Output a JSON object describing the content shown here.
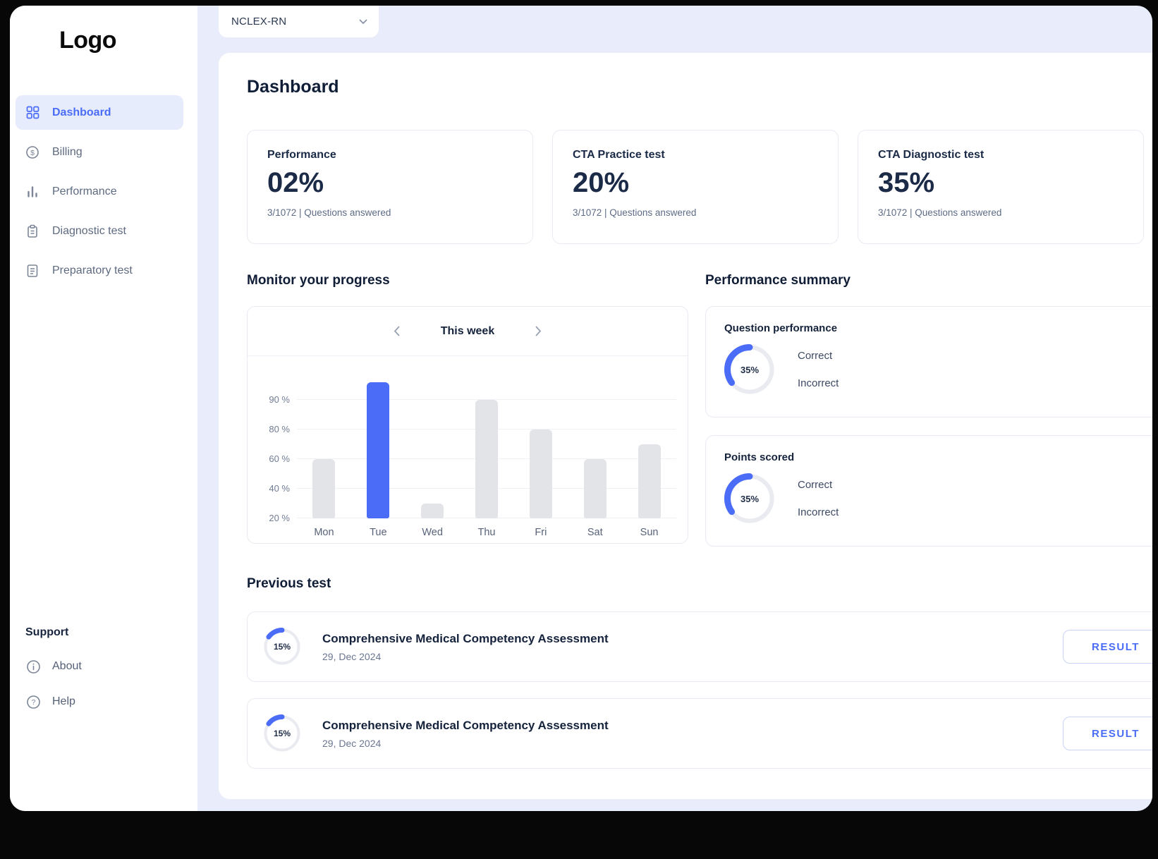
{
  "theme": {
    "accent": "#4A6CF7",
    "active_nav_bg": "#E7ECFC",
    "main_bg": "#E9EDFB",
    "bar_gray": "#E3E4E8",
    "dark_text": "#16233E"
  },
  "logo": "Logo",
  "sidebar": {
    "items": [
      {
        "label": "Dashboard",
        "icon": "dashboard-grid-icon",
        "active": true
      },
      {
        "label": "Billing",
        "icon": "billing-dollar-icon",
        "active": false
      },
      {
        "label": "Performance",
        "icon": "performance-bars-icon",
        "active": false
      },
      {
        "label": "Diagnostic test",
        "icon": "diagnostic-clipboard-icon",
        "active": false
      },
      {
        "label": "Preparatory test",
        "icon": "preparatory-document-icon",
        "active": false
      }
    ],
    "support": {
      "heading": "Support",
      "items": [
        {
          "label": "About",
          "icon": "info-icon"
        },
        {
          "label": "Help",
          "icon": "help-icon"
        }
      ]
    }
  },
  "topbar": {
    "course_select": {
      "value": "NCLEX-RN",
      "icon": "chevron-down-icon"
    }
  },
  "page": {
    "title": "Dashboard"
  },
  "stat_cards": [
    {
      "title": "Performance",
      "value": "02%",
      "subtext": "3/1072 | Questions answered"
    },
    {
      "title": "CTA Practice test",
      "value": "20%",
      "subtext": "3/1072 | Questions answered"
    },
    {
      "title": "CTA Diagnostic test",
      "value": "35%",
      "subtext": "3/1072 | Questions answered"
    }
  ],
  "progress_section": {
    "heading": "Monitor your progress",
    "period_label": "This week",
    "prev_icon": "chevron-left-icon",
    "next_icon": "chevron-right-icon"
  },
  "chart_data": {
    "type": "bar",
    "title": "This week",
    "categories": [
      "Mon",
      "Tue",
      "Wed",
      "Thu",
      "Fri",
      "Sat",
      "Sun"
    ],
    "values": [
      60,
      100,
      30,
      90,
      80,
      60,
      70
    ],
    "highlight_index": 1,
    "bar_color_default": "#E3E4E8",
    "bar_color_highlight": "#4A6CF7",
    "y_tick_labels": [
      "90 %",
      "80 %",
      "60 %",
      "40 %",
      "20 %"
    ],
    "ylabel": "",
    "xlabel": "",
    "grid": true,
    "legend_position": "none"
  },
  "performance_summary": {
    "heading": "Performance summary",
    "cards": [
      {
        "title": "Question performance",
        "pct": 35,
        "pct_label": "35%",
        "legend": [
          "Correct",
          "Incorrect"
        ]
      },
      {
        "title": "Points scored",
        "pct": 35,
        "pct_label": "35%",
        "legend": [
          "Correct",
          "Incorrect"
        ]
      }
    ]
  },
  "previous_tests": {
    "heading": "Previous test",
    "rows": [
      {
        "pct": 15,
        "pct_label": "15%",
        "title": "Comprehensive Medical Competency Assessment",
        "date": "29, Dec 2024",
        "action_label": "RESULT"
      },
      {
        "pct": 15,
        "pct_label": "15%",
        "title": "Comprehensive Medical Competency Assessment",
        "date": "29, Dec 2024",
        "action_label": "RESULT"
      }
    ]
  }
}
